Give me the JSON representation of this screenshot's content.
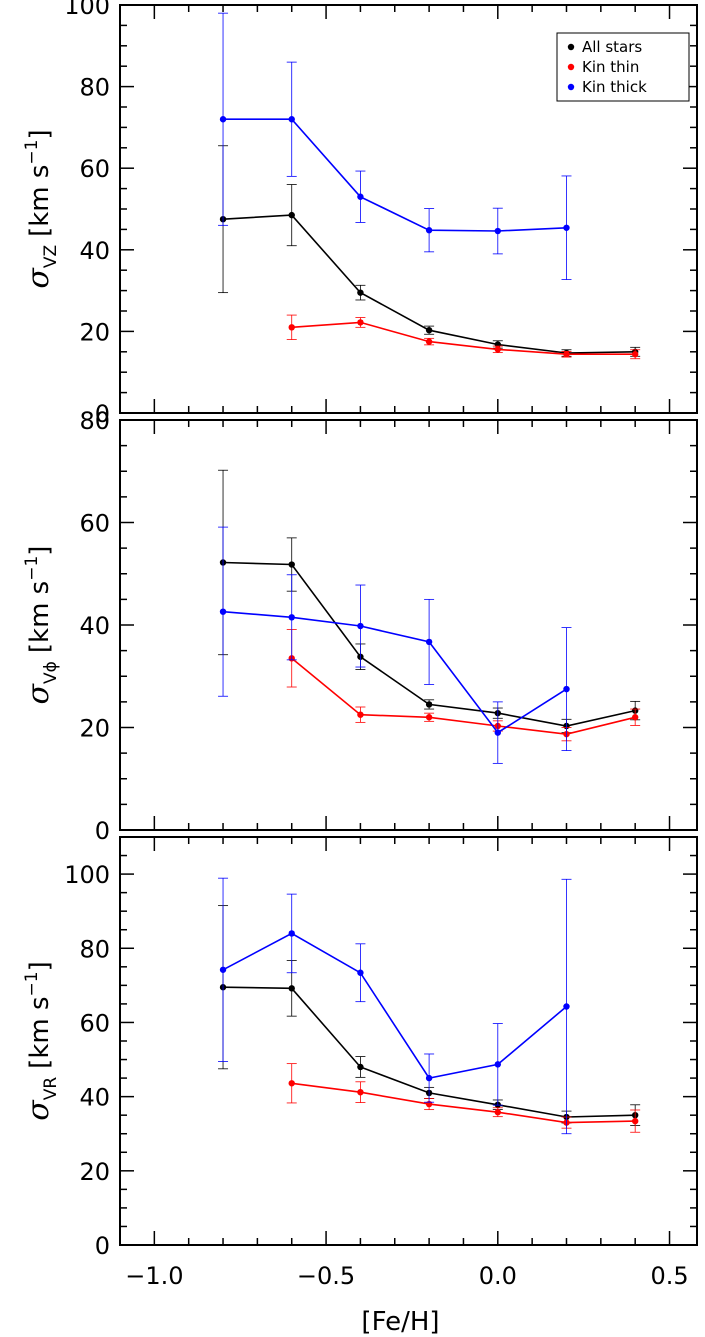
{
  "chart_data": [
    {
      "type": "line",
      "id": "vz",
      "ylabel_symbol": "σ",
      "ylabel_sub": "VZ",
      "ylabel_units": "[km s",
      "ylabel_exp": "−1",
      "ylabel_close": "]",
      "ylim": [
        0,
        100
      ],
      "yticks": [
        0,
        20,
        40,
        60,
        80,
        100
      ],
      "yticklabels": [
        "0",
        "20",
        "40",
        "60",
        "80",
        "100"
      ],
      "series": [
        {
          "name": "All stars",
          "color": "#000000",
          "x": [
            -0.8,
            -0.6,
            -0.4,
            -0.2,
            0.0,
            0.2,
            0.4
          ],
          "y": [
            47.5,
            48.5,
            29.5,
            20.3,
            16.8,
            14.7,
            15.0
          ],
          "err": [
            18.0,
            7.5,
            1.8,
            1.0,
            0.9,
            0.8,
            1.1
          ]
        },
        {
          "name": "Kin thin",
          "color": "#ff0000",
          "x": [
            -0.6,
            -0.4,
            -0.2,
            0.0,
            0.2,
            0.4
          ],
          "y": [
            21.0,
            22.2,
            17.5,
            15.6,
            14.4,
            14.4
          ],
          "err": [
            3.0,
            1.2,
            0.8,
            0.8,
            0.7,
            1.1
          ]
        },
        {
          "name": "Kin thick",
          "color": "#0000ff",
          "x": [
            -0.8,
            -0.6,
            -0.4,
            -0.2,
            0.0,
            0.2
          ],
          "y": [
            72.0,
            72.0,
            53.0,
            44.8,
            44.6,
            45.4
          ],
          "err": [
            26.0,
            14.0,
            6.3,
            5.3,
            5.6,
            12.7
          ]
        }
      ],
      "legend": [
        "All stars",
        "Kin thin",
        "Kin thick"
      ],
      "legend_position": "top-right"
    },
    {
      "type": "line",
      "id": "vphi",
      "ylabel_symbol": "σ",
      "ylabel_sub": "Vϕ",
      "ylabel_units": "[km s",
      "ylabel_exp": "−1",
      "ylabel_close": "]",
      "ylim": [
        0,
        80
      ],
      "yticks": [
        0,
        20,
        40,
        60,
        80
      ],
      "yticklabels": [
        "0",
        "20",
        "40",
        "60",
        "80"
      ],
      "series": [
        {
          "name": "All stars",
          "color": "#000000",
          "x": [
            -0.8,
            -0.6,
            -0.4,
            -0.2,
            0.0,
            0.2,
            0.4
          ],
          "y": [
            52.2,
            51.8,
            33.8,
            24.5,
            22.8,
            20.3,
            23.3
          ],
          "err": [
            18.0,
            5.2,
            2.5,
            0.9,
            1.0,
            1.3,
            1.8
          ]
        },
        {
          "name": "Kin thin",
          "color": "#ff0000",
          "x": [
            -0.6,
            -0.4,
            -0.2,
            0.0,
            0.2,
            0.4
          ],
          "y": [
            33.5,
            22.5,
            22.0,
            20.3,
            18.7,
            22.0
          ],
          "err": [
            5.6,
            1.5,
            0.8,
            1.0,
            1.3,
            1.6
          ]
        },
        {
          "name": "Kin thick",
          "color": "#0000ff",
          "x": [
            -0.8,
            -0.6,
            -0.4,
            -0.2,
            0.0,
            0.2
          ],
          "y": [
            42.6,
            41.5,
            39.8,
            36.7,
            19.0,
            27.5
          ],
          "err": [
            16.5,
            8.3,
            8.0,
            8.3,
            6.0,
            12.0
          ]
        }
      ],
      "legend": [],
      "legend_position": "none"
    },
    {
      "type": "line",
      "id": "vr",
      "ylabel_symbol": "σ",
      "ylabel_sub": "VR",
      "ylabel_units": "[km s",
      "ylabel_exp": "−1",
      "ylabel_close": "]",
      "ylim": [
        0,
        110
      ],
      "yticks": [
        0,
        20,
        40,
        60,
        80,
        100
      ],
      "yticklabels": [
        "0",
        "20",
        "40",
        "60",
        "80",
        "100"
      ],
      "xlabel": "[Fe/H]",
      "xticklabels": [
        "−1.0",
        "−0.5",
        "0.0",
        "0.5"
      ],
      "series": [
        {
          "name": "All stars",
          "color": "#000000",
          "x": [
            -0.8,
            -0.6,
            -0.4,
            -0.2,
            0.0,
            0.2,
            0.4
          ],
          "y": [
            69.5,
            69.2,
            48.0,
            41.0,
            37.8,
            34.5,
            35.0
          ],
          "err": [
            22.0,
            7.5,
            2.8,
            1.5,
            1.3,
            1.6,
            2.8
          ]
        },
        {
          "name": "Kin thin",
          "color": "#ff0000",
          "x": [
            -0.6,
            -0.4,
            -0.2,
            0.0,
            0.2,
            0.4
          ],
          "y": [
            43.6,
            41.2,
            38.0,
            35.8,
            33.0,
            33.4
          ],
          "err": [
            5.3,
            2.8,
            1.5,
            1.2,
            1.5,
            3.0
          ]
        },
        {
          "name": "Kin thick",
          "color": "#0000ff",
          "x": [
            -0.8,
            -0.6,
            -0.4,
            -0.2,
            0.0,
            0.2
          ],
          "y": [
            74.2,
            84.0,
            73.4,
            45.0,
            48.7,
            64.3
          ],
          "err": [
            24.7,
            10.6,
            7.8,
            6.5,
            11.0,
            34.3
          ]
        }
      ],
      "legend": [],
      "legend_position": "none"
    }
  ],
  "xlim": [
    -1.1,
    0.58
  ],
  "xticks": [
    -1.0,
    -0.5,
    0.0,
    0.5
  ]
}
